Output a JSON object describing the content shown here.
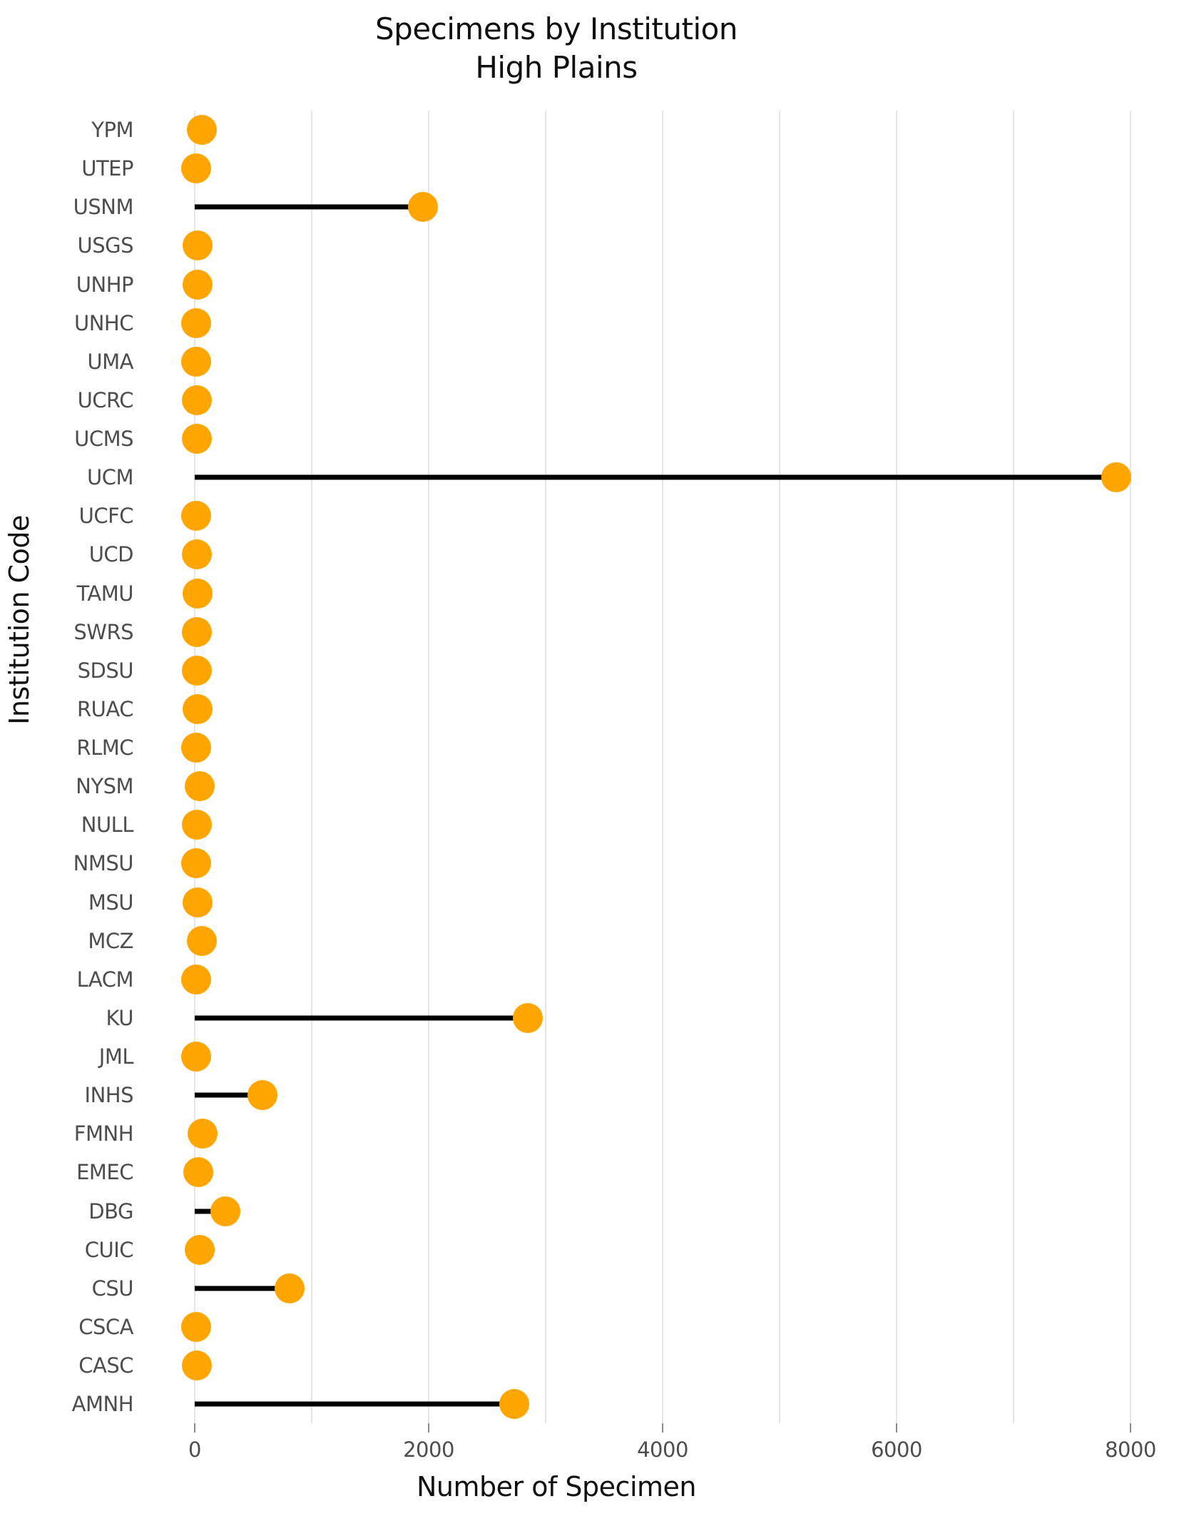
{
  "title": {
    "line1": "Specimens by Institution",
    "line2": "High Plains"
  },
  "chart_data": {
    "type": "bar",
    "variant": "lollipop",
    "orientation": "horizontal",
    "title": "Specimens by Institution",
    "subtitle": "High Plains",
    "xlabel": "Number of Specimen",
    "ylabel": "Institution Code",
    "xlim": [
      0,
      8290
    ],
    "x_ticks": [
      0,
      2000,
      4000,
      6000,
      8000
    ],
    "gridline_step": 1000,
    "grid": "vertical-only",
    "legend_position": "none",
    "dot_color": "#FFA500",
    "stem_color": "#000000",
    "gridline_color": "#e5e5e5",
    "axis_text_color": "#4d4d4d",
    "categories": [
      "YPM",
      "UTEP",
      "USNM",
      "USGS",
      "UNHP",
      "UNHC",
      "UMA",
      "UCRC",
      "UCMS",
      "UCM",
      "UCFC",
      "UCD",
      "TAMU",
      "SWRS",
      "SDSU",
      "RUAC",
      "RLMC",
      "NYSM",
      "NULL",
      "NMSU",
      "MSU",
      "MCZ",
      "LACM",
      "KU",
      "JML",
      "INHS",
      "FMNH",
      "EMEC",
      "DBG",
      "CUIC",
      "CSU",
      "CSCA",
      "CASC",
      "AMNH"
    ],
    "values": [
      60,
      10,
      1950,
      25,
      25,
      15,
      15,
      20,
      20,
      7880,
      15,
      20,
      25,
      20,
      20,
      25,
      15,
      40,
      20,
      15,
      25,
      60,
      15,
      2850,
      15,
      580,
      70,
      30,
      260,
      40,
      810,
      15,
      20,
      2730
    ]
  }
}
